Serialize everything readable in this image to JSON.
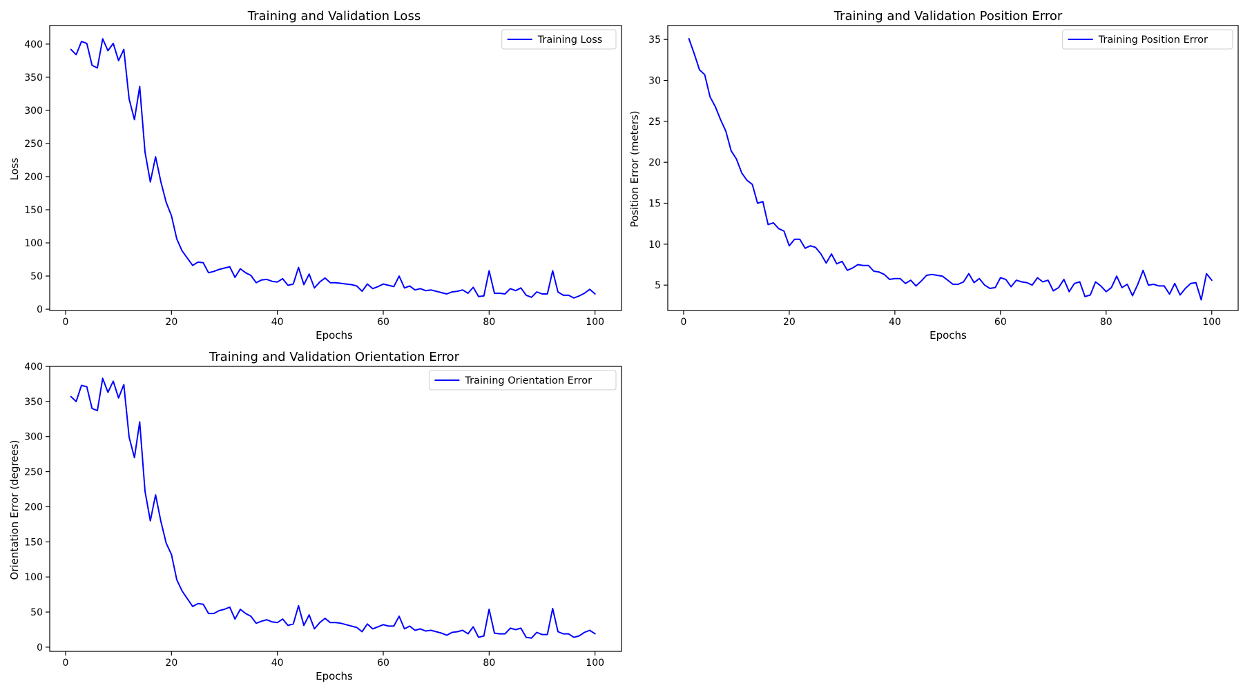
{
  "colors": {
    "line": "#0000ff",
    "background": "#ffffff",
    "axes": "#000000"
  },
  "chart_data": [
    {
      "type": "line",
      "title": "Training and Validation Loss",
      "xlabel": "Epochs",
      "ylabel": "Loss",
      "xlim": [
        -3,
        105
      ],
      "ylim": [
        -2,
        428
      ],
      "xticks": [
        0,
        20,
        40,
        60,
        80,
        100
      ],
      "yticks": [
        0,
        50,
        100,
        150,
        200,
        250,
        300,
        350,
        400
      ],
      "legend": "top-right",
      "grid": false,
      "series": [
        {
          "name": "Training Loss",
          "color": "#0000ff",
          "x": [
            1,
            2,
            3,
            4,
            5,
            6,
            7,
            8,
            9,
            10,
            11,
            12,
            13,
            14,
            15,
            16,
            17,
            18,
            19,
            20,
            21,
            22,
            23,
            24,
            25,
            26,
            27,
            28,
            29,
            30,
            31,
            32,
            33,
            34,
            35,
            36,
            37,
            38,
            39,
            40,
            41,
            42,
            43,
            44,
            45,
            46,
            47,
            48,
            49,
            50,
            51,
            52,
            53,
            54,
            55,
            56,
            57,
            58,
            59,
            60,
            61,
            62,
            63,
            64,
            65,
            66,
            67,
            68,
            69,
            70,
            71,
            72,
            73,
            74,
            75,
            76,
            77,
            78,
            79,
            80,
            81,
            82,
            83,
            84,
            85,
            86,
            87,
            88,
            89,
            90,
            91,
            92,
            93,
            94,
            95,
            96,
            97,
            98,
            99,
            100
          ],
          "y": [
            392,
            384,
            404,
            401,
            368,
            364,
            408,
            390,
            401,
            375,
            392,
            317,
            286,
            336,
            237,
            192,
            230,
            192,
            161,
            141,
            106,
            88,
            77,
            66,
            71,
            70,
            55,
            57,
            60,
            62,
            64,
            48,
            61,
            55,
            51,
            40,
            44,
            45,
            42,
            41,
            46,
            36,
            38,
            63,
            37,
            53,
            32,
            41,
            47,
            40,
            40,
            39,
            38,
            37,
            35,
            27,
            38,
            31,
            34,
            38,
            36,
            34,
            50,
            32,
            35,
            29,
            31,
            28,
            29,
            27,
            25,
            23,
            26,
            27,
            29,
            24,
            33,
            19,
            20,
            58,
            24,
            24,
            23,
            31,
            28,
            32,
            21,
            18,
            26,
            23,
            23,
            58,
            26,
            21,
            21,
            17,
            20,
            24,
            30,
            23
          ]
        }
      ]
    },
    {
      "type": "line",
      "title": "Training and Validation Position Error",
      "xlabel": "Epochs",
      "ylabel": "Position Error (meters)",
      "xlim": [
        -3,
        105
      ],
      "ylim": [
        1.9,
        36.7
      ],
      "xticks": [
        0,
        20,
        40,
        60,
        80,
        100
      ],
      "yticks": [
        5,
        10,
        15,
        20,
        25,
        30,
        35
      ],
      "legend": "top-right",
      "grid": false,
      "series": [
        {
          "name": "Training Position Error",
          "color": "#0000ff",
          "x": [
            1,
            2,
            3,
            4,
            5,
            6,
            7,
            8,
            9,
            10,
            11,
            12,
            13,
            14,
            15,
            16,
            17,
            18,
            19,
            20,
            21,
            22,
            23,
            24,
            25,
            26,
            27,
            28,
            29,
            30,
            31,
            32,
            33,
            34,
            35,
            36,
            37,
            38,
            39,
            40,
            41,
            42,
            43,
            44,
            45,
            46,
            47,
            48,
            49,
            50,
            51,
            52,
            53,
            54,
            55,
            56,
            57,
            58,
            59,
            60,
            61,
            62,
            63,
            64,
            65,
            66,
            67,
            68,
            69,
            70,
            71,
            72,
            73,
            74,
            75,
            76,
            77,
            78,
            79,
            80,
            81,
            82,
            83,
            84,
            85,
            86,
            87,
            88,
            89,
            90,
            91,
            92,
            93,
            94,
            95,
            96,
            97,
            98,
            99,
            100
          ],
          "y": [
            35.1,
            33.3,
            31.3,
            30.7,
            28.0,
            26.8,
            25.2,
            23.8,
            21.4,
            20.4,
            18.7,
            17.8,
            17.3,
            15.0,
            15.2,
            12.4,
            12.6,
            11.9,
            11.6,
            9.8,
            10.6,
            10.6,
            9.5,
            9.8,
            9.6,
            8.8,
            7.7,
            8.8,
            7.6,
            7.9,
            6.8,
            7.1,
            7.5,
            7.4,
            7.4,
            6.7,
            6.6,
            6.3,
            5.7,
            5.8,
            5.8,
            5.2,
            5.6,
            4.9,
            5.5,
            6.2,
            6.3,
            6.2,
            6.1,
            5.6,
            5.1,
            5.1,
            5.4,
            6.4,
            5.3,
            5.8,
            5.0,
            4.6,
            4.7,
            5.9,
            5.7,
            4.8,
            5.6,
            5.4,
            5.3,
            5.0,
            5.9,
            5.4,
            5.6,
            4.3,
            4.7,
            5.7,
            4.2,
            5.2,
            5.4,
            3.6,
            3.8,
            5.4,
            4.9,
            4.2,
            4.7,
            6.1,
            4.7,
            5.1,
            3.7,
            5.1,
            6.8,
            5.0,
            5.1,
            4.9,
            4.9,
            3.9,
            5.2,
            3.8,
            4.6,
            5.2,
            5.3,
            3.2,
            6.4,
            5.6
          ]
        }
      ]
    },
    {
      "type": "line",
      "title": "Training and Validation Orientation Error",
      "xlabel": "Epochs",
      "ylabel": "Orientation Error (degrees)",
      "xlim": [
        -3,
        105
      ],
      "ylim": [
        -6,
        400
      ],
      "xticks": [
        0,
        20,
        40,
        60,
        80,
        100
      ],
      "yticks": [
        0,
        50,
        100,
        150,
        200,
        250,
        300,
        350,
        400
      ],
      "legend": "top-right",
      "grid": false,
      "series": [
        {
          "name": "Training Orientation Error",
          "color": "#0000ff",
          "x": [
            1,
            2,
            3,
            4,
            5,
            6,
            7,
            8,
            9,
            10,
            11,
            12,
            13,
            14,
            15,
            16,
            17,
            18,
            19,
            20,
            21,
            22,
            23,
            24,
            25,
            26,
            27,
            28,
            29,
            30,
            31,
            32,
            33,
            34,
            35,
            36,
            37,
            38,
            39,
            40,
            41,
            42,
            43,
            44,
            45,
            46,
            47,
            48,
            49,
            50,
            51,
            52,
            53,
            54,
            55,
            56,
            57,
            58,
            59,
            60,
            61,
            62,
            63,
            64,
            65,
            66,
            67,
            68,
            69,
            70,
            71,
            72,
            73,
            74,
            75,
            76,
            77,
            78,
            79,
            80,
            81,
            82,
            83,
            84,
            85,
            86,
            87,
            88,
            89,
            90,
            91,
            92,
            93,
            94,
            95,
            96,
            97,
            98,
            99,
            100
          ],
          "y": [
            357,
            350,
            373,
            371,
            340,
            337,
            383,
            363,
            379,
            355,
            374,
            299,
            270,
            321,
            222,
            180,
            217,
            179,
            148,
            132,
            96,
            80,
            69,
            58,
            62,
            61,
            48,
            48,
            52,
            54,
            57,
            40,
            54,
            48,
            44,
            34,
            37,
            39,
            36,
            35,
            40,
            31,
            33,
            59,
            31,
            46,
            26,
            35,
            41,
            35,
            35,
            34,
            32,
            30,
            28,
            22,
            33,
            26,
            29,
            32,
            30,
            30,
            44,
            26,
            30,
            24,
            26,
            23,
            24,
            22,
            20,
            17,
            21,
            22,
            24,
            19,
            29,
            14,
            16,
            54,
            20,
            19,
            19,
            27,
            25,
            27,
            14,
            13,
            21,
            18,
            18,
            55,
            22,
            19,
            19,
            14,
            16,
            21,
            24,
            19
          ]
        }
      ]
    }
  ]
}
